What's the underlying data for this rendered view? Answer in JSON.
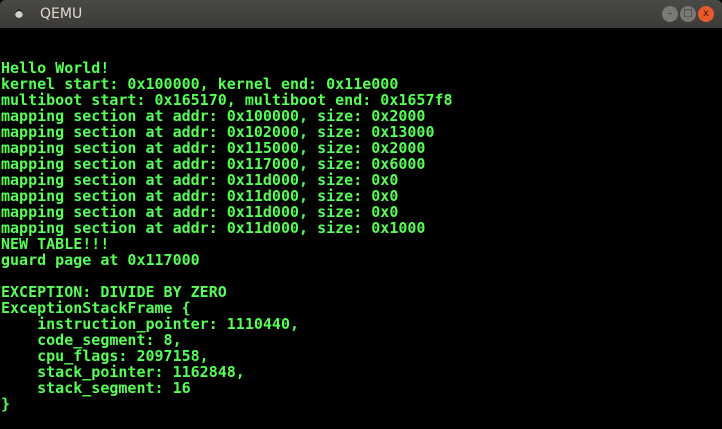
{
  "window": {
    "title": "QEMU",
    "buttons": {
      "minimize": "–",
      "maximize": "□",
      "close": "x"
    }
  },
  "colors": {
    "text": "#55ff55",
    "background": "#000000",
    "close_button": "#e85a2c"
  },
  "console_lines": [
    "",
    "",
    "Hello World!",
    "kernel start: 0x100000, kernel end: 0x11e000",
    "multiboot start: 0x165170, multiboot end: 0x1657f8",
    "mapping section at addr: 0x100000, size: 0x2000",
    "mapping section at addr: 0x102000, size: 0x13000",
    "mapping section at addr: 0x115000, size: 0x2000",
    "mapping section at addr: 0x117000, size: 0x6000",
    "mapping section at addr: 0x11d000, size: 0x0",
    "mapping section at addr: 0x11d000, size: 0x0",
    "mapping section at addr: 0x11d000, size: 0x0",
    "mapping section at addr: 0x11d000, size: 0x1000",
    "NEW TABLE!!!",
    "guard page at 0x117000",
    "",
    "EXCEPTION: DIVIDE BY ZERO",
    "ExceptionStackFrame {",
    "    instruction_pointer: 1110440,",
    "    code_segment: 8,",
    "    cpu_flags: 2097158,",
    "    stack_pointer: 1162848,",
    "    stack_segment: 16",
    "}"
  ]
}
